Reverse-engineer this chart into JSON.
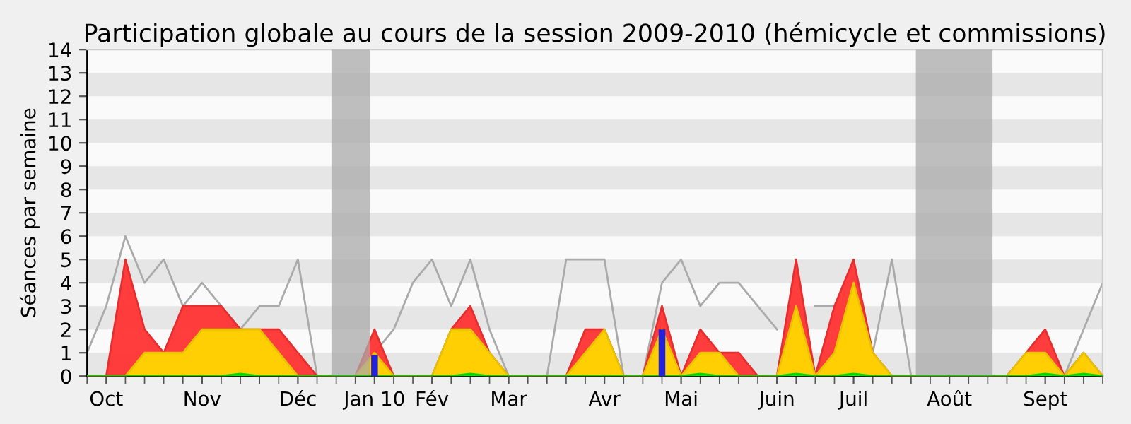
{
  "chart_data": {
    "type": "area",
    "title": "Participation globale au cours de la session 2009-2010 (hémicycle et commissions)",
    "ylabel": "Séances par semaine",
    "categories": [
      null,
      "Oct",
      null,
      null,
      null,
      null,
      "Nov",
      null,
      null,
      null,
      null,
      "Déc",
      null,
      null,
      null,
      "Jan 10",
      null,
      null,
      "Fév",
      null,
      null,
      null,
      "Mar",
      null,
      null,
      null,
      null,
      "Avr",
      null,
      null,
      null,
      "Mai",
      null,
      null,
      null,
      null,
      "Juin",
      null,
      null,
      null,
      "Juil",
      null,
      null,
      null,
      null,
      "Août",
      null,
      null,
      null,
      null,
      "Sept",
      null,
      null,
      null
    ],
    "ylim": [
      0,
      14
    ],
    "yticks": [
      0,
      1,
      2,
      3,
      4,
      5,
      6,
      7,
      8,
      9,
      10,
      11,
      12,
      13,
      14
    ],
    "series": [
      {
        "type": "line",
        "color": "#aaaaaa",
        "values": [
          1,
          3,
          6,
          4,
          5,
          3,
          4,
          3,
          2,
          3,
          3,
          5,
          0,
          0,
          0,
          1,
          2,
          4,
          5,
          3,
          5,
          2,
          0,
          0,
          0,
          5,
          5,
          5,
          0,
          0,
          4,
          5,
          3,
          4,
          4,
          3,
          2,
          null,
          3,
          3,
          null,
          1,
          5,
          0,
          0,
          0,
          0,
          0,
          0,
          0,
          0,
          0,
          2,
          4
        ]
      },
      {
        "color": "#ff3333",
        "values": [
          0,
          0,
          5,
          2,
          1,
          3,
          3,
          3,
          2,
          2,
          2,
          1,
          0,
          0,
          0,
          2,
          0,
          0,
          0,
          2,
          3,
          1,
          0,
          0,
          0,
          0,
          2,
          2,
          0,
          0,
          3,
          0,
          2,
          1,
          1,
          0,
          0,
          5,
          0,
          3,
          5,
          1,
          0,
          0,
          0,
          0,
          0,
          0,
          0,
          1,
          2,
          0,
          1,
          0
        ]
      },
      {
        "color": "#ffd700",
        "values": [
          0,
          0,
          0,
          1,
          1,
          1,
          2,
          2,
          2,
          2,
          1,
          0,
          0,
          0,
          0,
          1,
          0,
          0,
          0,
          2,
          2,
          1,
          0,
          0,
          0,
          0,
          1,
          2,
          0,
          0,
          2,
          0,
          1,
          1,
          0,
          0,
          0,
          3,
          0,
          1,
          4,
          1,
          0,
          0,
          0,
          0,
          0,
          0,
          0,
          1,
          1,
          0,
          1,
          0
        ]
      },
      {
        "color": "#00ee00",
        "values": [
          0,
          0,
          0,
          0,
          0,
          0,
          0,
          0,
          0.1,
          0,
          0,
          0,
          0,
          0,
          0,
          0,
          0,
          0,
          0,
          0,
          0.1,
          0,
          0,
          0,
          0,
          0,
          0,
          0,
          0,
          0,
          0,
          0,
          0.1,
          0,
          0,
          0,
          0,
          0.1,
          0,
          0,
          0.1,
          0,
          0,
          0,
          0,
          0,
          0,
          0,
          0,
          0,
          0.1,
          0,
          0.1,
          0
        ]
      },
      {
        "type": "bar",
        "color": "#2222dd",
        "values": [
          null,
          null,
          null,
          null,
          null,
          null,
          null,
          null,
          null,
          null,
          null,
          null,
          null,
          null,
          null,
          0.9,
          null,
          null,
          null,
          null,
          null,
          null,
          null,
          null,
          null,
          null,
          null,
          null,
          null,
          null,
          2,
          null,
          null,
          null,
          null,
          null,
          null,
          null,
          null,
          null,
          null,
          null,
          null,
          null,
          null,
          null,
          null,
          null,
          null,
          null,
          null,
          null,
          null,
          null
        ]
      }
    ]
  }
}
